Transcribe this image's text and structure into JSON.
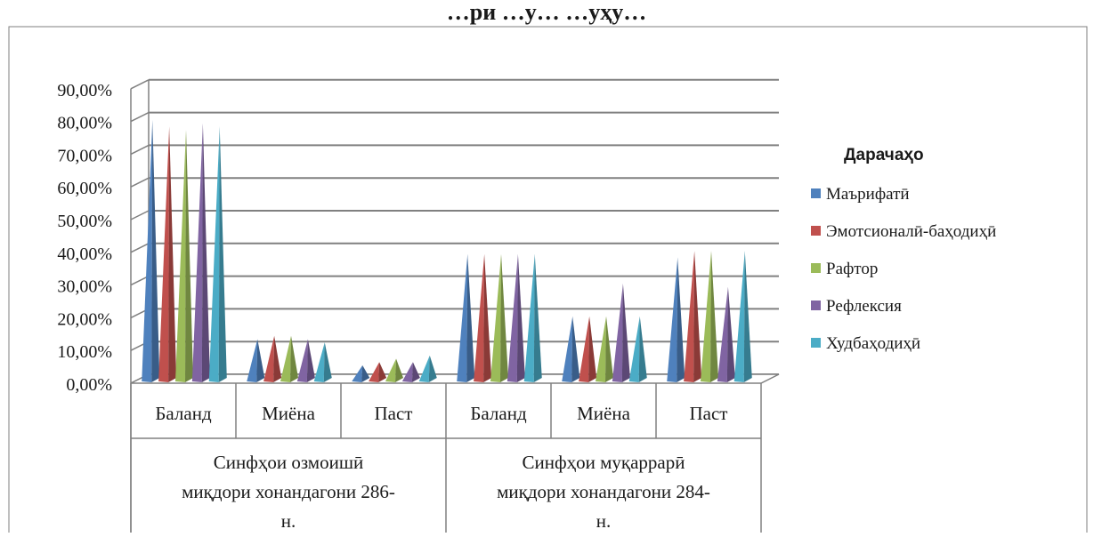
{
  "chart_data": {
    "type": "bar",
    "title": "…ри             …у…                                                     …уҳу…",
    "groups": [
      {
        "label": "Синфҳои озмоишӣ миқдори хонандагони 286-н.",
        "label_lines": [
          "Синфҳои озмоишӣ",
          "миқдори хонандагони 286-",
          "н."
        ]
      },
      {
        "label": "Синфҳои муқаррарӣ миқдори хонандагони 284-н.",
        "label_lines": [
          "Синфҳои муқаррарӣ",
          "миқдори хонандагони 284-",
          "н."
        ]
      }
    ],
    "categories": [
      "Баланд",
      "Миёна",
      "Паст",
      "Баланд",
      "Миёна",
      "Паст"
    ],
    "series": [
      {
        "name": "Маърифатӣ",
        "color": "#4F81BD",
        "values": [
          81,
          14,
          6,
          40,
          21,
          39
        ]
      },
      {
        "name": "Эмотсионалӣ-баҳодиҳӣ",
        "color": "#C0504D",
        "values": [
          79,
          15,
          7,
          40,
          21,
          41
        ]
      },
      {
        "name": "Рафтор",
        "color": "#9BBB59",
        "values": [
          78,
          15,
          8,
          40,
          21,
          41
        ]
      },
      {
        "name": "Рефлексия",
        "color": "#8064A2",
        "values": [
          80,
          14,
          7,
          40,
          31,
          30
        ]
      },
      {
        "name": "Худбаҳодиҳӣ",
        "color": "#4BACC6",
        "values": [
          79,
          13,
          9,
          40,
          21,
          41
        ]
      }
    ],
    "y_ticks": [
      "0,00%",
      "10,00%",
      "20,00%",
      "30,00%",
      "40,00%",
      "50,00%",
      "60,00%",
      "70,00%",
      "80,00%",
      "90,00%"
    ],
    "ylim": [
      0,
      90
    ],
    "y_unit": "%",
    "grid": true,
    "legend": {
      "title": "Дарачаҳо",
      "position": "right"
    }
  }
}
